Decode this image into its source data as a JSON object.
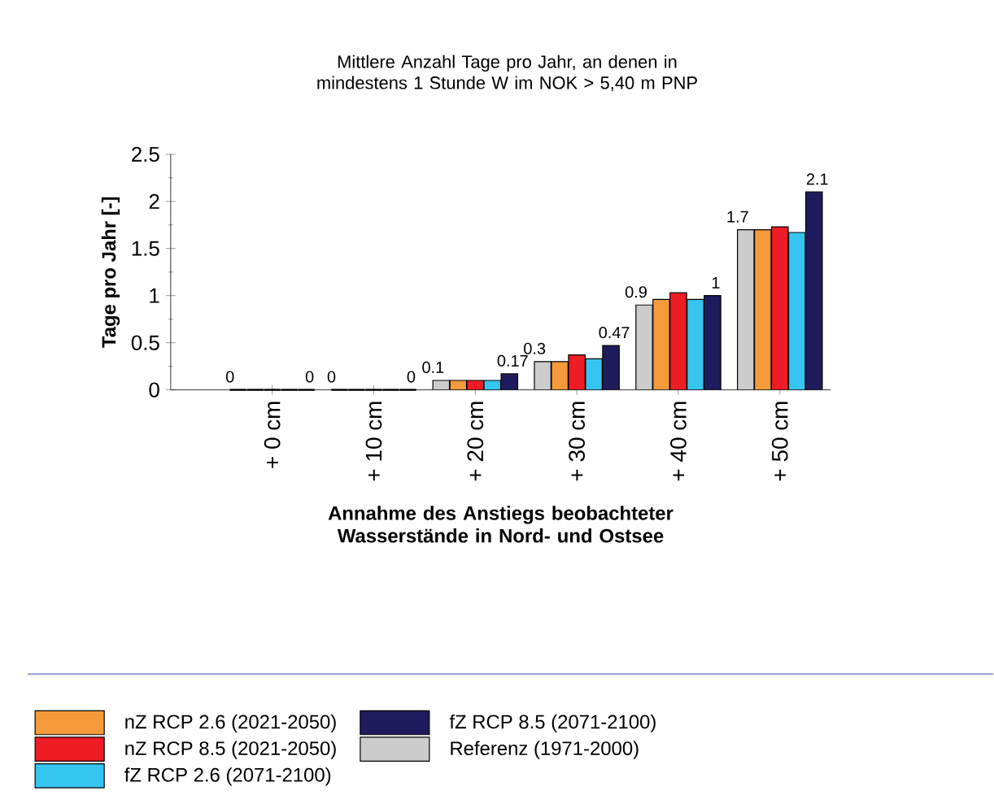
{
  "chart_data": {
    "type": "bar",
    "title": "Mittlere Anzahl Tage pro Jahr, an denen in mindestens 1 Stunde W im NOK > 5,40 m PNP",
    "xlabel": "Annahme des Anstiegs beobachteter Wasserstände in Nord- und Ostsee",
    "ylabel": "Tage pro Jahr [-]",
    "categories": [
      "+ 0 cm",
      "+ 10 cm",
      "+ 20 cm",
      "+ 30 cm",
      "+ 40 cm",
      "+ 50 cm"
    ],
    "series": [
      {
        "name": "Referenz (1971-2000)",
        "color": "#cccccc",
        "values": [
          0,
          0,
          0.1,
          0.3,
          0.9,
          1.7
        ],
        "value_labels": [
          "0",
          "0",
          "0.1",
          "0.3",
          "0.9",
          "1.7"
        ]
      },
      {
        "name": "nZ RCP 2.6 (2021-2050)",
        "color": "#f59a3a",
        "values": [
          0,
          0,
          0.1,
          0.3,
          0.96,
          1.7
        ]
      },
      {
        "name": "nZ RCP 8.5 (2021-2050)",
        "color": "#ee1c25",
        "values": [
          0,
          0,
          0.1,
          0.37,
          1.03,
          1.73
        ]
      },
      {
        "name": "fZ RCP 2.6 (2071-2100)",
        "color": "#35c5f0",
        "values": [
          0,
          0,
          0.1,
          0.33,
          0.96,
          1.67
        ]
      },
      {
        "name": "fZ RCP 8.5 (2071-2100)",
        "color": "#1f1c5e",
        "values": [
          0,
          0,
          0.17,
          0.47,
          1,
          2.1
        ],
        "value_labels": [
          "0",
          "0",
          "0.17",
          "0.47",
          "1",
          "2.1"
        ]
      }
    ],
    "ylim": [
      0,
      2.5
    ],
    "yticks": [
      0,
      0.5,
      1,
      1.5,
      2,
      2.5
    ],
    "grid": false,
    "legend": "bottom"
  }
}
